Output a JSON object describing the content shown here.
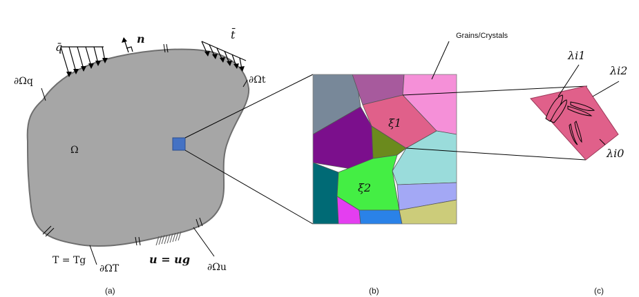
{
  "panel_a": {
    "caption": "(a)",
    "domain_label": "Ω",
    "heat_flux_label": "q̄",
    "normal_label": "n",
    "traction_label": "t̄",
    "boundary_q": "∂Ωq",
    "boundary_t": "∂Ωt",
    "temp_bc": "T = Tg",
    "boundary_T": "∂ΩT",
    "disp_bc": "u = ug",
    "boundary_u": "∂Ωu"
  },
  "panel_b": {
    "caption": "(b)",
    "annotation": "Grains/Crystals",
    "grain_1": "ξ1",
    "grain_2": "ξ2"
  },
  "panel_c": {
    "caption": "(c)",
    "lambda_1": "λi1",
    "lambda_2": "λi2",
    "lambda_0": "λi0"
  },
  "colors": {
    "body": "#a6a6a6",
    "body_outline": "#6e6e6e",
    "selected_square": "#4472c4",
    "grain_highlight": "#e0608a",
    "grain_2": "#44ee44"
  }
}
